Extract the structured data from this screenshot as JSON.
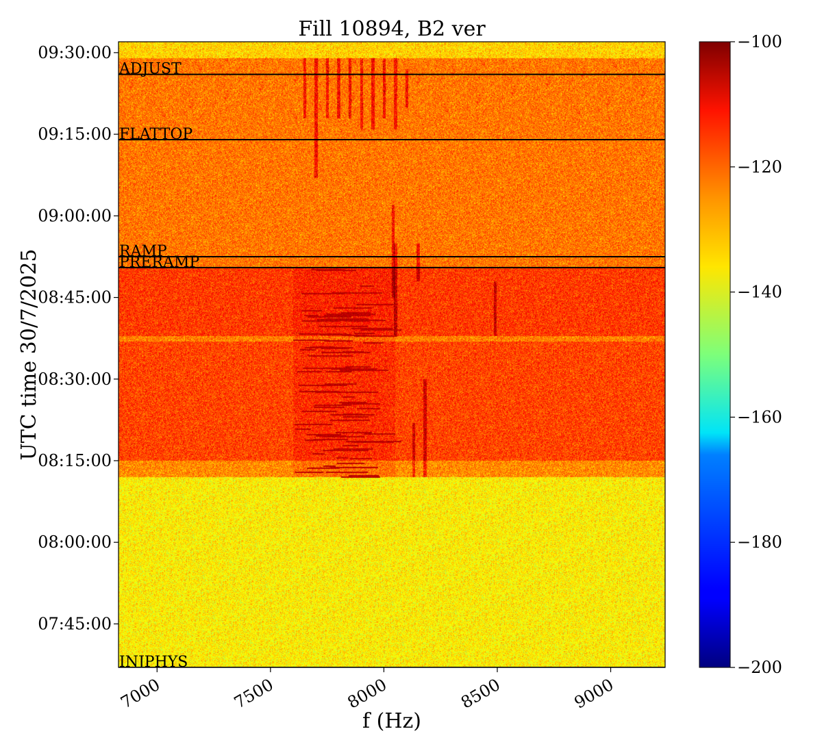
{
  "chart_data": {
    "type": "heatmap",
    "title": "Fill 10894, B2 ver",
    "xlabel": "f (Hz)",
    "ylabel": "UTC time 30/7/2025",
    "xlim": [
      6830,
      9240
    ],
    "ylim": [
      "07:37:00",
      "09:32:00"
    ],
    "x_ticks": [
      7000,
      7500,
      8000,
      8500,
      9000
    ],
    "x_tick_labels": [
      "7000",
      "7500",
      "8000",
      "8500",
      "9000"
    ],
    "y_ticks": [
      "07:45:00",
      "08:00:00",
      "08:15:00",
      "08:30:00",
      "08:45:00",
      "09:00:00",
      "09:15:00",
      "09:30:00"
    ],
    "y_tick_labels": [
      "07:45:00",
      "08:00:00",
      "08:15:00",
      "08:30:00",
      "08:45:00",
      "09:00:00",
      "09:15:00",
      "09:30:00"
    ],
    "colorbar": {
      "colormap": "jet",
      "range": [
        -200,
        -100
      ],
      "ticks": [
        -100,
        -120,
        -140,
        -160,
        -180,
        -200
      ],
      "tick_labels": [
        "−100",
        "−120",
        "−140",
        "−160",
        "−180",
        "−200"
      ]
    },
    "beam_phases": [
      {
        "label": "INJPHYS",
        "time": "07:37:00"
      },
      {
        "label": "PRERAMP",
        "time": "08:50:30"
      },
      {
        "label": "RAMP",
        "time": "08:52:30"
      },
      {
        "label": "FLATTOP",
        "time": "09:14:00"
      },
      {
        "label": "ADJUST",
        "time": "09:26:00"
      }
    ],
    "intensity_regions": [
      {
        "time_range": [
          "07:37:00",
          "08:12:00"
        ],
        "level": -136
      },
      {
        "time_range": [
          "08:12:00",
          "08:15:00"
        ],
        "level": -126
      },
      {
        "time_range": [
          "08:15:00",
          "08:37:00"
        ],
        "level": -119
      },
      {
        "time_range": [
          "08:37:00",
          "08:38:00"
        ],
        "level": -125
      },
      {
        "time_range": [
          "08:38:00",
          "08:50:30"
        ],
        "level": -118
      },
      {
        "time_range": [
          "08:50:30",
          "09:29:00"
        ],
        "level": -124
      },
      {
        "time_range": [
          "09:29:00",
          "09:32:00"
        ],
        "level": -133
      }
    ],
    "spectral_lines": [
      {
        "freq": 7700,
        "time_range": [
          "09:07:00",
          "09:29:00"
        ]
      },
      {
        "freq": 7650,
        "time_range": [
          "09:18:00",
          "09:29:00"
        ]
      },
      {
        "freq": 7750,
        "time_range": [
          "09:18:00",
          "09:29:00"
        ]
      },
      {
        "freq": 7800,
        "time_range": [
          "09:18:00",
          "09:29:00"
        ]
      },
      {
        "freq": 7850,
        "time_range": [
          "09:18:00",
          "09:29:00"
        ]
      },
      {
        "freq": 7900,
        "time_range": [
          "09:16:00",
          "09:29:00"
        ]
      },
      {
        "freq": 7950,
        "time_range": [
          "09:16:00",
          "09:29:00"
        ]
      },
      {
        "freq": 8000,
        "time_range": [
          "09:18:00",
          "09:29:00"
        ]
      },
      {
        "freq": 8050,
        "time_range": [
          "09:16:00",
          "09:29:00"
        ]
      },
      {
        "freq": 8100,
        "time_range": [
          "09:20:00",
          "09:27:00"
        ]
      },
      {
        "freq": 8040,
        "time_range": [
          "08:45:00",
          "09:02:00"
        ]
      },
      {
        "freq": 8050,
        "time_range": [
          "08:38:00",
          "08:55:00"
        ]
      },
      {
        "freq": 8150,
        "time_range": [
          "08:48:00",
          "08:55:00"
        ]
      },
      {
        "freq": 8180,
        "time_range": [
          "08:12:00",
          "08:30:00"
        ]
      },
      {
        "freq": 8130,
        "time_range": [
          "08:12:00",
          "08:22:00"
        ]
      },
      {
        "freq": 8490,
        "time_range": [
          "08:38:00",
          "08:48:00"
        ]
      }
    ],
    "hot_band": {
      "freq_range": [
        7600,
        8050
      ],
      "time_range": [
        "08:12:00",
        "08:50:30"
      ],
      "level": -104
    }
  }
}
